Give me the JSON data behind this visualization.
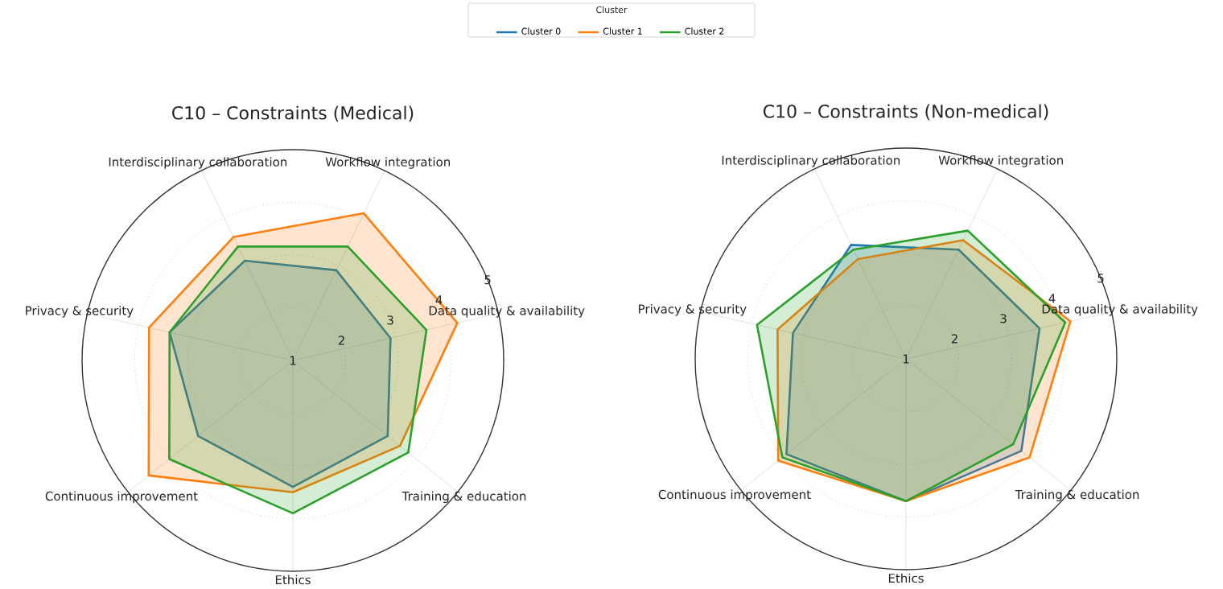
{
  "chart_data": [
    {
      "type": "radar",
      "title": "C10 – Constraints (Medical)",
      "legend_title": "Cluster",
      "legend": "top",
      "grid": true,
      "categories": [
        "Interdisciplinary collaboration",
        "Workflow integration",
        "Data quality & availability",
        "Training & education",
        "Ethics",
        "Continuous improvement",
        "Privacy & security"
      ],
      "ylim": [
        1,
        5
      ],
      "yticks": [
        1,
        2,
        3,
        4,
        5
      ],
      "series": [
        {
          "name": "Cluster 0",
          "color": "#1f77b4",
          "values": [
            3.1,
            2.9,
            2.9,
            3.3,
            3.4,
            3.3,
            3.4
          ]
        },
        {
          "name": "Cluster 1",
          "color": "#ff7f0e",
          "values": [
            3.6,
            4.1,
            4.2,
            3.6,
            3.5,
            4.5,
            3.8
          ]
        },
        {
          "name": "Cluster 2",
          "color": "#2ca02c",
          "values": [
            3.4,
            3.4,
            3.6,
            3.8,
            3.9,
            4.0,
            3.4
          ]
        }
      ]
    },
    {
      "type": "radar",
      "title": "C10 – Constraints (Non-medical)",
      "grid": true,
      "categories": [
        "Interdisciplinary collaboration",
        "Workflow integration",
        "Data quality & availability",
        "Training & education",
        "Ethics",
        "Continuous improvement",
        "Privacy & security"
      ],
      "ylim": [
        1,
        5
      ],
      "yticks": [
        1,
        2,
        3,
        4,
        5
      ],
      "series": [
        {
          "color": "#1f77b4",
          "values": [
            3.4,
            3.3,
            3.6,
            3.8,
            3.7,
            3.9,
            3.2
          ]
        },
        {
          "color": "#ff7f0e",
          "values": [
            3.1,
            3.5,
            4.2,
            4.0,
            3.7,
            4.1,
            3.5
          ]
        },
        {
          "color": "#2ca02c",
          "values": [
            3.3,
            3.7,
            4.1,
            3.6,
            3.7,
            4.0,
            3.9
          ]
        }
      ]
    }
  ]
}
